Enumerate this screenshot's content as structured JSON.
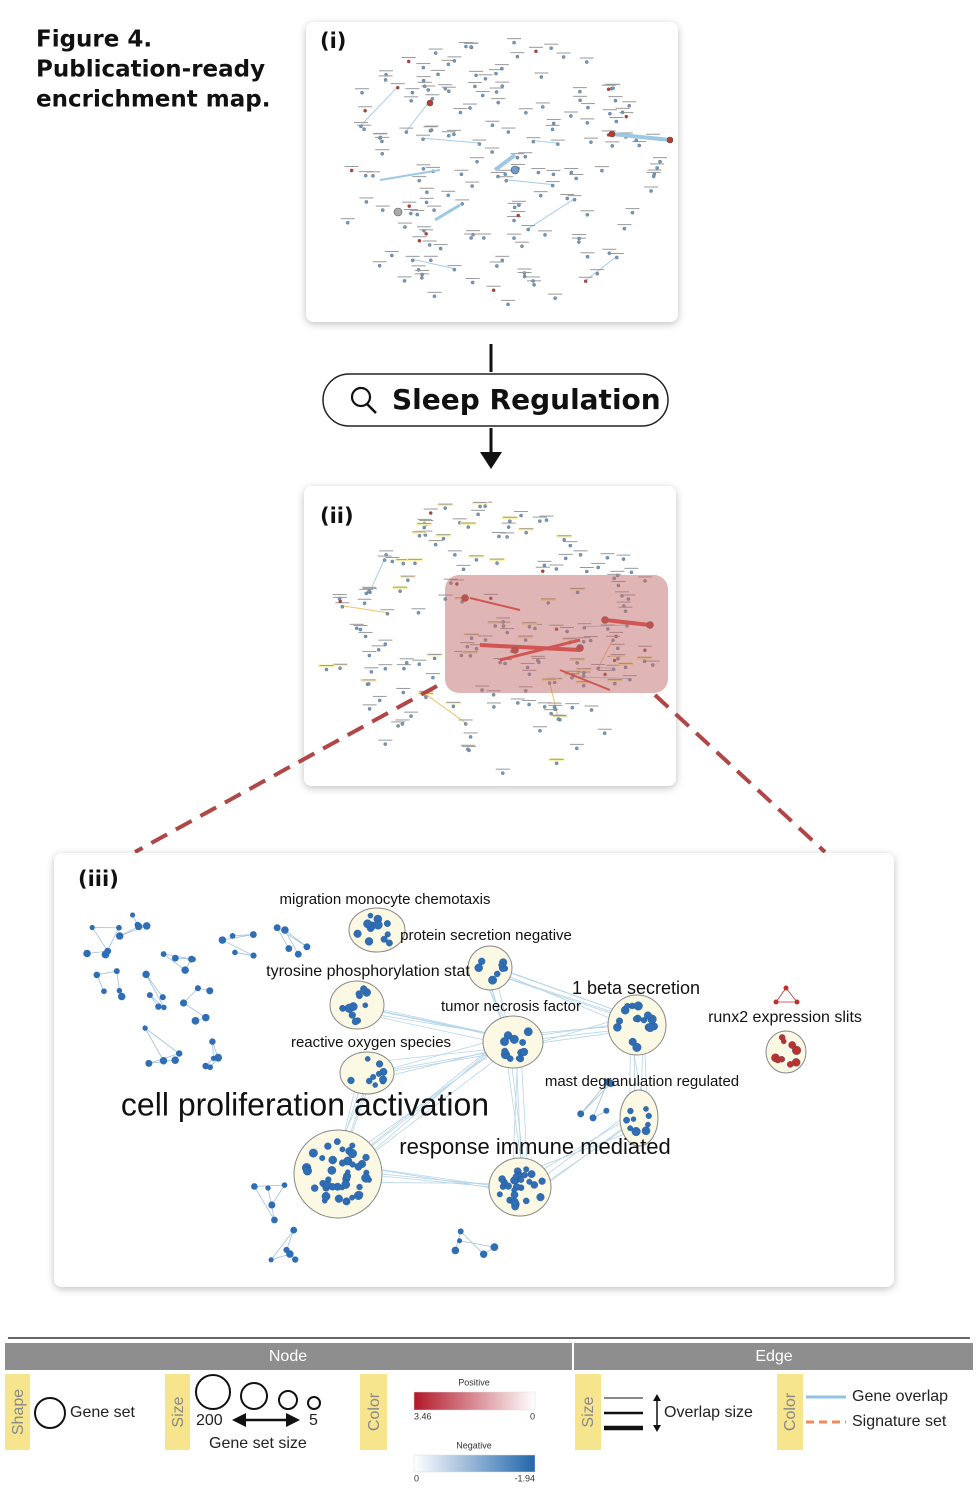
{
  "caption": [
    "Figure 4.",
    "Publication-ready",
    "encrichment map."
  ],
  "panels": [
    {
      "label": "(i)"
    },
    {
      "label": "(ii)"
    },
    {
      "label": "(iii)",
      "clusters": [
        "migration monocyte chemotaxis",
        "protein secretion negative",
        "tyrosine phosphorylation stat",
        "1 beta secretion",
        "tumor necrosis factor",
        "runx2 expression slits",
        "reactive oxygen species",
        "mast degranulation regulated",
        "cell proliferation activation",
        "response immune mediated"
      ]
    }
  ],
  "search": "Sleep Regulation",
  "legend": {
    "node": {
      "header": "Node",
      "shape_tag": "Shape",
      "shape_label": "Gene set",
      "size_tag": "Size",
      "size_max": "200",
      "size_min": "5",
      "size_caption": "Gene set size",
      "color_tag": "Color",
      "positive": "Positive",
      "positive_high": "3.46",
      "positive_low": "0",
      "negative": "Negative",
      "negative_low": "0",
      "negative_high": "-1.94"
    },
    "edge": {
      "header": "Edge",
      "size_tag": "Size",
      "size_label": "Overlap size",
      "color_tag": "Color",
      "gene_overlap": "Gene overlap",
      "signature_set": "Signature set"
    }
  }
}
